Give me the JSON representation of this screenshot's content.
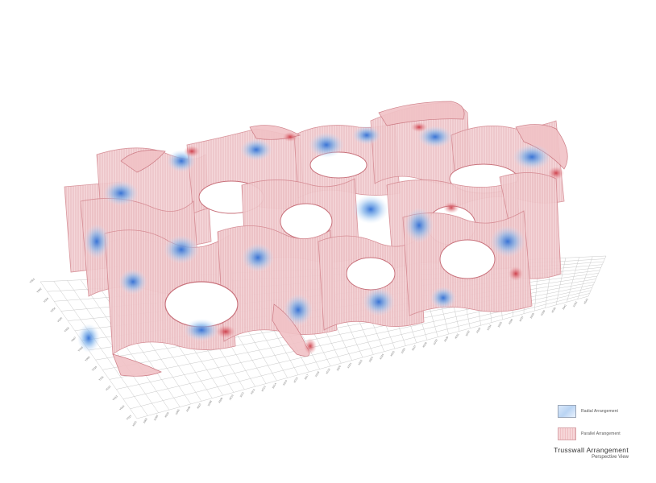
{
  "legend": {
    "items": [
      {
        "label": "Radial Arrangement",
        "swatch": "radial",
        "color": "#b9d4f3"
      },
      {
        "label": "Parallel Arrangement",
        "swatch": "parallel",
        "color": "#efbfc3"
      }
    ]
  },
  "title": {
    "main": "Trusswall Arrangement",
    "sub": "Perspective View"
  },
  "colors": {
    "grid": "#c9c9c9",
    "wall_fill": "#f2c9cc",
    "wall_stroke": "#d58a92",
    "radial": "#7fb2ea",
    "accent_red": "#d2454f"
  },
  "grid": {
    "front_labels": [
      "X001",
      "X002",
      "X003",
      "X004",
      "X005",
      "X006",
      "X007",
      "X008",
      "X009",
      "X010",
      "X011",
      "X012",
      "X013",
      "X014",
      "X015",
      "X016",
      "X017",
      "X018",
      "X019",
      "X020",
      "X021",
      "X022",
      "X023",
      "X024",
      "X025",
      "X026",
      "X027",
      "X028",
      "X029",
      "X030",
      "X031",
      "X032",
      "X033",
      "X034",
      "X035",
      "X036",
      "X037",
      "X038",
      "X039",
      "X040",
      "X041",
      "X042",
      "X043"
    ],
    "side_labels": [
      "Y001",
      "Y002",
      "Y003",
      "Y004",
      "Y005",
      "Y006",
      "Y007",
      "Y008",
      "Y009",
      "Y010",
      "Y011",
      "Y012",
      "Y013",
      "Y014",
      "Y015"
    ]
  }
}
